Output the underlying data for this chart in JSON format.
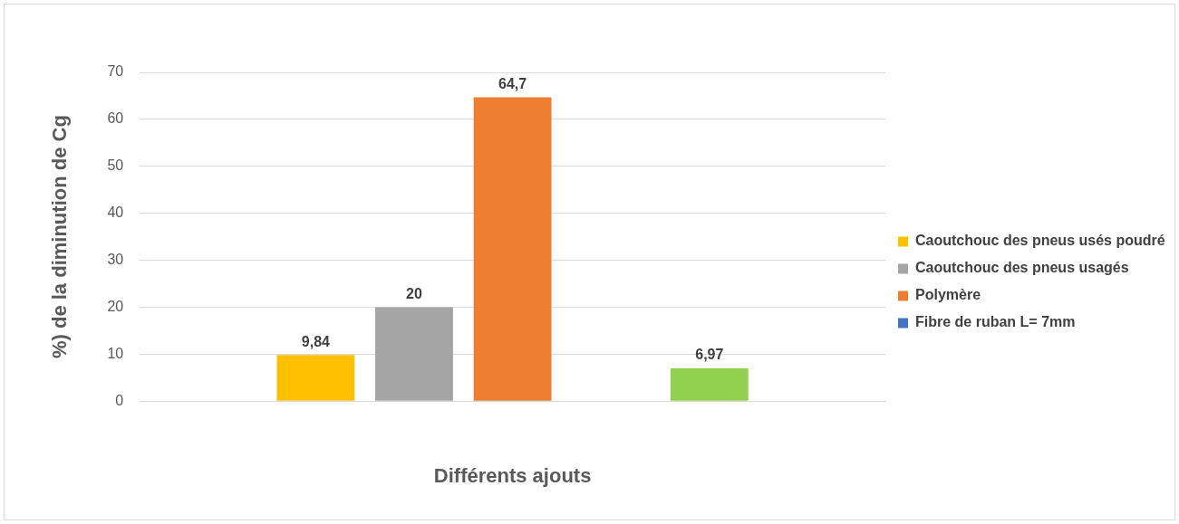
{
  "chart_data": {
    "type": "bar",
    "xlabel": "Différents ajouts",
    "ylabel": "%) de la diminution de Cg",
    "categories": [
      null
    ],
    "series": [
      {
        "name": "Caoutchouc des pneus usés poudré",
        "color": "#ffc000",
        "values": [
          9.84
        ],
        "value_labels": [
          "9,84"
        ]
      },
      {
        "name": "Caoutchouc des pneus usagés",
        "color": "#a5a5a5",
        "values": [
          20
        ],
        "value_labels": [
          "20"
        ]
      },
      {
        "name": "Polymère",
        "color": "#ed7d31",
        "values": [
          64.7
        ],
        "value_labels": [
          "64,7"
        ]
      },
      {
        "name": "Fibre de ruban L= 7mm",
        "color": "#4472c4",
        "values": [
          null
        ],
        "value_labels": [
          null
        ]
      },
      {
        "color": "#92d050",
        "values": [
          6.97
        ],
        "value_labels": [
          "6,97"
        ]
      }
    ],
    "ylim": [
      0,
      70
    ],
    "yticks": [
      0,
      10,
      20,
      30,
      40,
      50,
      60,
      70
    ],
    "grid": "y",
    "legend": "right"
  }
}
